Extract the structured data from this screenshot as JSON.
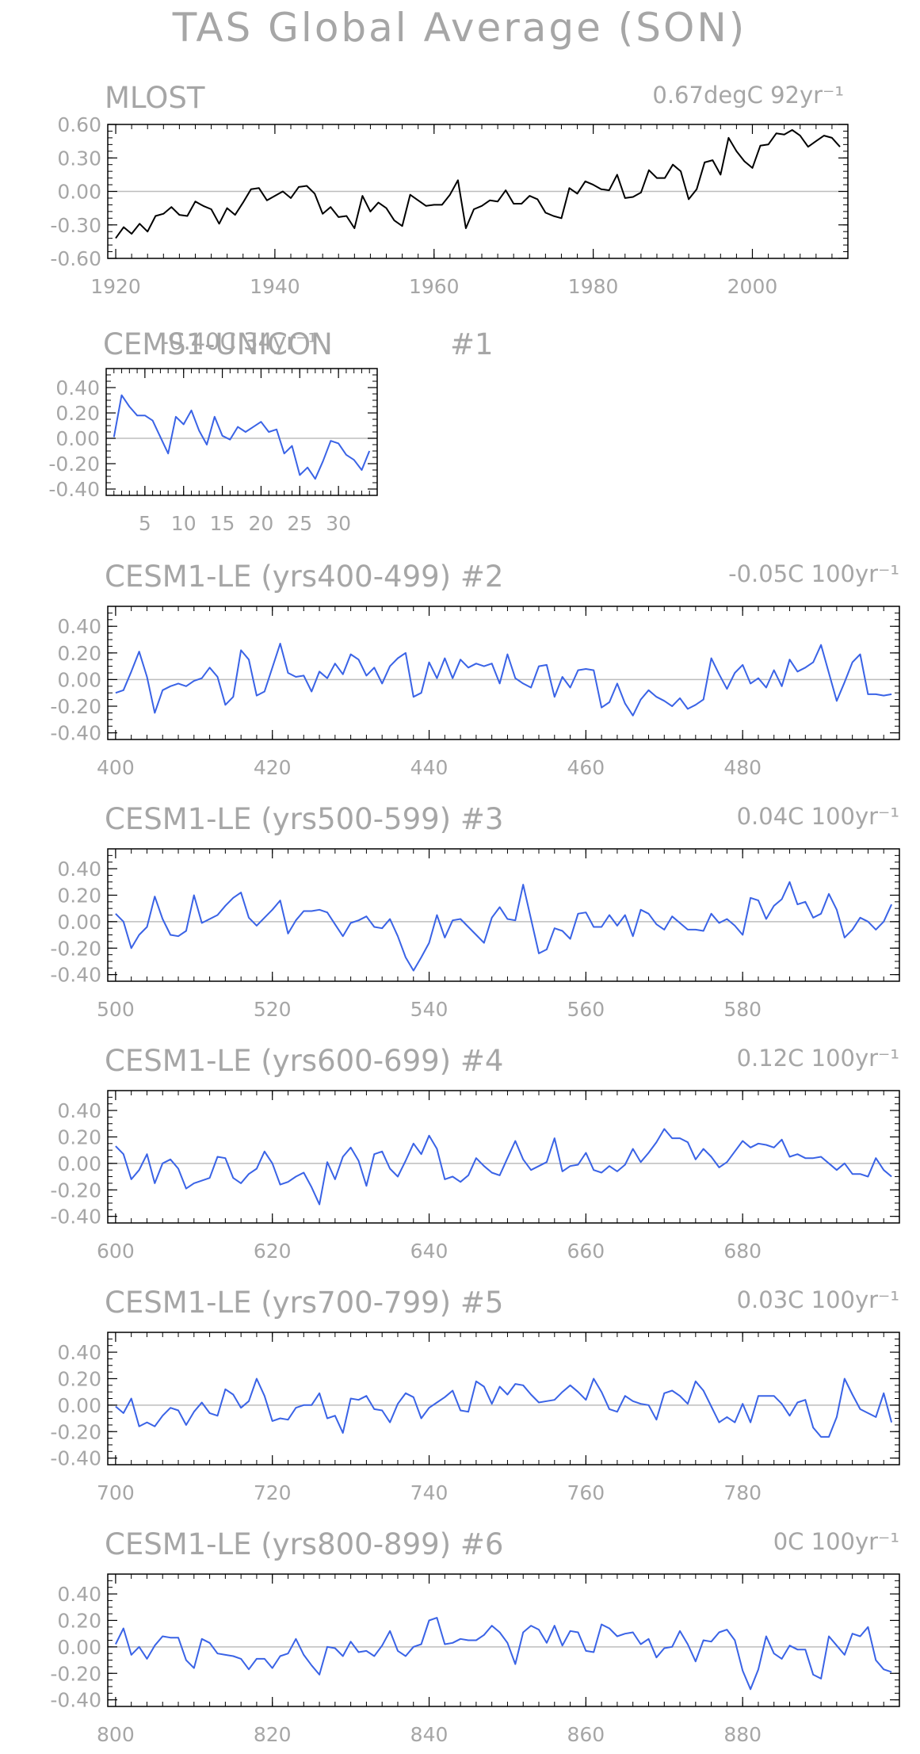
{
  "figure_title": "TAS Global Average (SON)",
  "colors": {
    "obs_line": "#000000",
    "model_line": "#3a63e6",
    "text": "#a6a6a6",
    "zero_line": "#bdbdbd",
    "frame": "#000000"
  },
  "chart_data": [
    {
      "type": "line",
      "id": "p0",
      "title": "MLOST",
      "trend_text": "0.67degC 92yr⁻¹",
      "x_start": 1920,
      "x_step": 1,
      "xlim": [
        1919,
        2012
      ],
      "ylim": [
        -0.6,
        0.6
      ],
      "xticks": [
        1920,
        1940,
        1960,
        1980,
        2000
      ],
      "yticks": [
        -0.6,
        -0.3,
        0,
        0.3,
        0.6
      ],
      "ytick_labels": [
        "-0.60",
        "-0.30",
        "0.00",
        "0.30",
        "0.60"
      ],
      "xlabel": "",
      "ylabel": "",
      "grid": false,
      "color": "#000000",
      "values": [
        -0.42,
        -0.32,
        -0.38,
        -0.29,
        -0.36,
        -0.22,
        -0.2,
        -0.14,
        -0.21,
        -0.22,
        -0.09,
        -0.13,
        -0.16,
        -0.29,
        -0.15,
        -0.21,
        -0.1,
        0.02,
        0.03,
        -0.08,
        -0.04,
        0,
        -0.06,
        0.04,
        0.05,
        -0.02,
        -0.2,
        -0.14,
        -0.23,
        -0.22,
        -0.33,
        -0.04,
        -0.18,
        -0.1,
        -0.15,
        -0.26,
        -0.31,
        -0.03,
        -0.08,
        -0.13,
        -0.12,
        -0.12,
        -0.03,
        0.1,
        -0.33,
        -0.16,
        -0.13,
        -0.08,
        -0.09,
        0.01,
        -0.11,
        -0.11,
        -0.04,
        -0.07,
        -0.19,
        -0.22,
        -0.24,
        0.03,
        -0.02,
        0.09,
        0.06,
        0.02,
        0.01,
        0.15,
        -0.06,
        -0.05,
        -0.01,
        0.19,
        0.12,
        0.12,
        0.24,
        0.18,
        -0.07,
        0.02,
        0.26,
        0.28,
        0.15,
        0.48,
        0.36,
        0.27,
        0.21,
        0.41,
        0.42,
        0.52,
        0.51,
        0.55,
        0.5,
        0.4,
        0.45,
        0.5,
        0.48,
        0.4
      ]
    },
    {
      "type": "line",
      "id": "p1",
      "title": "CEMS1-UNICON",
      "member": "#1",
      "trend_text": "-0.40C 34yr⁻¹",
      "x_start": 1,
      "x_step": 1,
      "xlim": [
        0,
        35
      ],
      "ylim": [
        -0.45,
        0.55
      ],
      "xticks": [
        5,
        10,
        15,
        20,
        25,
        30
      ],
      "yticks": [
        -0.4,
        -0.2,
        0,
        0.2,
        0.4
      ],
      "ytick_labels": [
        "-0.40",
        "-0.20",
        "0.00",
        "0.20",
        "0.40"
      ],
      "xlabel": "",
      "ylabel": "",
      "grid": false,
      "color": "#3a63e6",
      "values": [
        0.01,
        0.34,
        0.25,
        0.18,
        0.18,
        0.14,
        0.01,
        -0.12,
        0.17,
        0.11,
        0.22,
        0.06,
        -0.05,
        0.17,
        0.02,
        -0.01,
        0.09,
        0.05,
        0.09,
        0.13,
        0.05,
        0.07,
        -0.12,
        -0.06,
        -0.29,
        -0.23,
        -0.32,
        -0.18,
        -0.02,
        -0.04,
        -0.13,
        -0.17,
        -0.25,
        -0.1
      ]
    },
    {
      "type": "line",
      "id": "p2",
      "title": "CESM1-LE (yrs400-499)",
      "member": "#2",
      "trend_text": "-0.05C 100yr⁻¹",
      "x_start": 400,
      "x_step": 1,
      "xlim": [
        399,
        500
      ],
      "ylim": [
        -0.45,
        0.55
      ],
      "xticks": [
        400,
        420,
        440,
        460,
        480
      ],
      "yticks": [
        -0.4,
        -0.2,
        0,
        0.2,
        0.4
      ],
      "ytick_labels": [
        "-0.40",
        "-0.20",
        "0.00",
        "0.20",
        "0.40"
      ],
      "xlabel": "",
      "ylabel": "",
      "grid": false,
      "color": "#3a63e6",
      "values": [
        -0.1,
        -0.08,
        0.06,
        0.21,
        0.02,
        -0.25,
        -0.08,
        -0.05,
        -0.03,
        -0.05,
        -0.01,
        0.01,
        0.09,
        0.02,
        -0.19,
        -0.13,
        0.22,
        0.15,
        -0.12,
        -0.09,
        0.09,
        0.27,
        0.05,
        0.02,
        0.03,
        -0.09,
        0.06,
        0.01,
        0.12,
        0.04,
        0.19,
        0.15,
        0.03,
        0.09,
        -0.03,
        0.1,
        0.16,
        0.2,
        -0.13,
        -0.1,
        0.13,
        0.01,
        0.16,
        0.01,
        0.15,
        0.09,
        0.12,
        0.1,
        0.12,
        -0.03,
        0.19,
        0.01,
        -0.03,
        -0.06,
        0.1,
        0.11,
        -0.13,
        0.02,
        -0.06,
        0.07,
        0.08,
        0.07,
        -0.21,
        -0.17,
        -0.03,
        -0.18,
        -0.27,
        -0.15,
        -0.08,
        -0.13,
        -0.16,
        -0.2,
        -0.14,
        -0.22,
        -0.19,
        -0.15,
        0.16,
        0.04,
        -0.07,
        0.05,
        0.11,
        -0.03,
        0.01,
        -0.06,
        0.07,
        -0.05,
        0.15,
        0.06,
        0.09,
        0.13,
        0.26,
        0.05,
        -0.16,
        -0.02,
        0.13,
        0.19,
        -0.11,
        -0.11,
        -0.12,
        -0.11
      ]
    },
    {
      "type": "line",
      "id": "p3",
      "title": "CESM1-LE (yrs500-599)",
      "member": "#3",
      "trend_text": "0.04C 100yr⁻¹",
      "x_start": 500,
      "x_step": 1,
      "xlim": [
        499,
        600
      ],
      "ylim": [
        -0.45,
        0.55
      ],
      "xticks": [
        500,
        520,
        540,
        560,
        580
      ],
      "yticks": [
        -0.4,
        -0.2,
        0,
        0.2,
        0.4
      ],
      "ytick_labels": [
        "-0.40",
        "-0.20",
        "0.00",
        "0.20",
        "0.40"
      ],
      "xlabel": "",
      "ylabel": "",
      "grid": false,
      "color": "#3a63e6",
      "values": [
        0.06,
        0.0,
        -0.2,
        -0.1,
        -0.04,
        0.19,
        0.02,
        -0.1,
        -0.11,
        -0.07,
        0.2,
        -0.01,
        0.02,
        0.05,
        0.12,
        0.18,
        0.22,
        0.03,
        -0.03,
        0.03,
        0.09,
        0.16,
        -0.09,
        0.01,
        0.08,
        0.08,
        0.09,
        0.07,
        -0.02,
        -0.11,
        -0.01,
        0.01,
        0.04,
        -0.04,
        -0.05,
        0.02,
        -0.11,
        -0.27,
        -0.37,
        -0.27,
        -0.16,
        0.05,
        -0.12,
        0.01,
        0.02,
        -0.04,
        -0.1,
        -0.16,
        0.03,
        0.11,
        0.02,
        0.01,
        0.28,
        0.02,
        -0.24,
        -0.21,
        -0.05,
        -0.07,
        -0.13,
        0.06,
        0.07,
        -0.04,
        -0.04,
        0.05,
        -0.03,
        0.05,
        -0.11,
        0.09,
        0.06,
        -0.02,
        -0.06,
        0.04,
        -0.01,
        -0.06,
        -0.06,
        -0.07,
        0.06,
        -0.01,
        0.02,
        -0.03,
        -0.1,
        0.18,
        0.16,
        0.02,
        0.12,
        0.17,
        0.3,
        0.13,
        0.15,
        0.03,
        0.06,
        0.21,
        0.09,
        -0.12,
        -0.06,
        0.03,
        0.0,
        -0.06,
        0.0,
        0.13
      ]
    },
    {
      "type": "line",
      "id": "p4",
      "title": "CESM1-LE (yrs600-699)",
      "member": "#4",
      "trend_text": "0.12C 100yr⁻¹",
      "x_start": 600,
      "x_step": 1,
      "xlim": [
        599,
        700
      ],
      "ylim": [
        -0.45,
        0.55
      ],
      "xticks": [
        600,
        620,
        640,
        660,
        680
      ],
      "yticks": [
        -0.4,
        -0.2,
        0,
        0.2,
        0.4
      ],
      "ytick_labels": [
        "-0.40",
        "-0.20",
        "0.00",
        "0.20",
        "0.40"
      ],
      "xlabel": "",
      "ylabel": "",
      "grid": false,
      "color": "#3a63e6",
      "values": [
        0.13,
        0.07,
        -0.12,
        -0.05,
        0.07,
        -0.15,
        0.0,
        0.03,
        -0.04,
        -0.19,
        -0.15,
        -0.13,
        -0.11,
        0.05,
        0.04,
        -0.11,
        -0.15,
        -0.08,
        -0.04,
        0.09,
        0.0,
        -0.16,
        -0.14,
        -0.1,
        -0.07,
        -0.18,
        -0.31,
        0.01,
        -0.12,
        0.05,
        0.12,
        0.02,
        -0.17,
        0.07,
        0.09,
        -0.04,
        -0.1,
        0.02,
        0.15,
        0.07,
        0.21,
        0.11,
        -0.12,
        -0.1,
        -0.14,
        -0.09,
        0.04,
        -0.02,
        -0.07,
        -0.09,
        0.04,
        0.17,
        0.03,
        -0.05,
        -0.02,
        0.01,
        0.19,
        -0.06,
        -0.02,
        -0.01,
        0.08,
        -0.05,
        -0.07,
        -0.02,
        -0.06,
        -0.01,
        0.11,
        0.01,
        0.08,
        0.16,
        0.26,
        0.19,
        0.19,
        0.16,
        0.03,
        0.11,
        0.05,
        -0.03,
        0.01,
        0.09,
        0.17,
        0.12,
        0.15,
        0.14,
        0.12,
        0.18,
        0.05,
        0.07,
        0.04,
        0.04,
        0.05,
        0.0,
        -0.05,
        0.0,
        -0.08,
        -0.08,
        -0.1,
        0.04,
        -0.05,
        -0.1
      ]
    },
    {
      "type": "line",
      "id": "p5",
      "title": "CESM1-LE (yrs700-799)",
      "member": "#5",
      "trend_text": "0.03C 100yr⁻¹",
      "x_start": 700,
      "x_step": 1,
      "xlim": [
        699,
        800
      ],
      "ylim": [
        -0.45,
        0.55
      ],
      "xticks": [
        700,
        720,
        740,
        760,
        780
      ],
      "yticks": [
        -0.4,
        -0.2,
        0,
        0.2,
        0.4
      ],
      "ytick_labels": [
        "-0.40",
        "-0.20",
        "0.00",
        "0.20",
        "0.40"
      ],
      "xlabel": "",
      "ylabel": "",
      "grid": false,
      "color": "#3a63e6",
      "values": [
        -0.01,
        -0.06,
        0.05,
        -0.16,
        -0.13,
        -0.16,
        -0.08,
        -0.02,
        -0.04,
        -0.15,
        -0.05,
        0.02,
        -0.06,
        -0.08,
        0.12,
        0.08,
        -0.02,
        0.03,
        0.2,
        0.07,
        -0.12,
        -0.1,
        -0.11,
        -0.02,
        0.0,
        0.0,
        0.09,
        -0.1,
        -0.08,
        -0.21,
        0.05,
        0.04,
        0.07,
        -0.03,
        -0.04,
        -0.13,
        0.01,
        0.09,
        0.06,
        -0.1,
        -0.02,
        0.02,
        0.06,
        0.11,
        -0.04,
        -0.05,
        0.18,
        0.14,
        0.01,
        0.14,
        0.08,
        0.16,
        0.15,
        0.08,
        0.02,
        0.03,
        0.04,
        0.1,
        0.15,
        0.1,
        0.04,
        0.2,
        0.1,
        -0.03,
        -0.05,
        0.07,
        0.03,
        0.01,
        0.0,
        -0.11,
        0.09,
        0.11,
        0.07,
        0.01,
        0.18,
        0.11,
        -0.01,
        -0.13,
        -0.09,
        -0.13,
        0.01,
        -0.13,
        0.07,
        0.07,
        0.07,
        0.01,
        -0.08,
        0.02,
        0.04,
        -0.17,
        -0.24,
        -0.24,
        -0.09,
        0.2,
        0.08,
        -0.03,
        -0.06,
        -0.09,
        0.09,
        -0.13
      ]
    },
    {
      "type": "line",
      "id": "p6",
      "title": "CESM1-LE (yrs800-899)",
      "member": "#6",
      "trend_text": "0C 100yr⁻¹",
      "x_start": 800,
      "x_step": 1,
      "xlim": [
        799,
        900
      ],
      "ylim": [
        -0.45,
        0.55
      ],
      "xticks": [
        800,
        820,
        840,
        860,
        880
      ],
      "yticks": [
        -0.4,
        -0.2,
        0,
        0.2,
        0.4
      ],
      "ytick_labels": [
        "-0.40",
        "-0.20",
        "0.00",
        "0.20",
        "0.40"
      ],
      "xlabel": "",
      "ylabel": "",
      "grid": false,
      "color": "#3a63e6",
      "values": [
        0.02,
        0.14,
        -0.06,
        0.0,
        -0.09,
        0.01,
        0.08,
        0.07,
        0.07,
        -0.1,
        -0.16,
        0.06,
        0.03,
        -0.05,
        -0.06,
        -0.07,
        -0.09,
        -0.17,
        -0.09,
        -0.09,
        -0.16,
        -0.07,
        -0.05,
        0.06,
        -0.06,
        -0.14,
        -0.21,
        0.0,
        -0.01,
        -0.07,
        0.04,
        -0.04,
        -0.03,
        -0.07,
        0.01,
        0.12,
        -0.03,
        -0.07,
        0.0,
        0.02,
        0.2,
        0.22,
        0.02,
        0.03,
        0.06,
        0.05,
        0.05,
        0.09,
        0.16,
        0.11,
        0.03,
        -0.13,
        0.11,
        0.16,
        0.13,
        0.03,
        0.16,
        0.01,
        0.12,
        0.11,
        -0.03,
        -0.04,
        0.17,
        0.14,
        0.08,
        0.1,
        0.11,
        0.02,
        0.06,
        -0.08,
        -0.01,
        0.0,
        0.12,
        0.02,
        -0.11,
        0.05,
        0.04,
        0.11,
        0.13,
        0.05,
        -0.18,
        -0.32,
        -0.17,
        0.08,
        -0.05,
        -0.09,
        0.01,
        -0.02,
        -0.02,
        -0.21,
        -0.24,
        0.08,
        0.01,
        -0.06,
        0.1,
        0.08,
        0.15,
        -0.1,
        -0.17,
        -0.19
      ]
    }
  ]
}
